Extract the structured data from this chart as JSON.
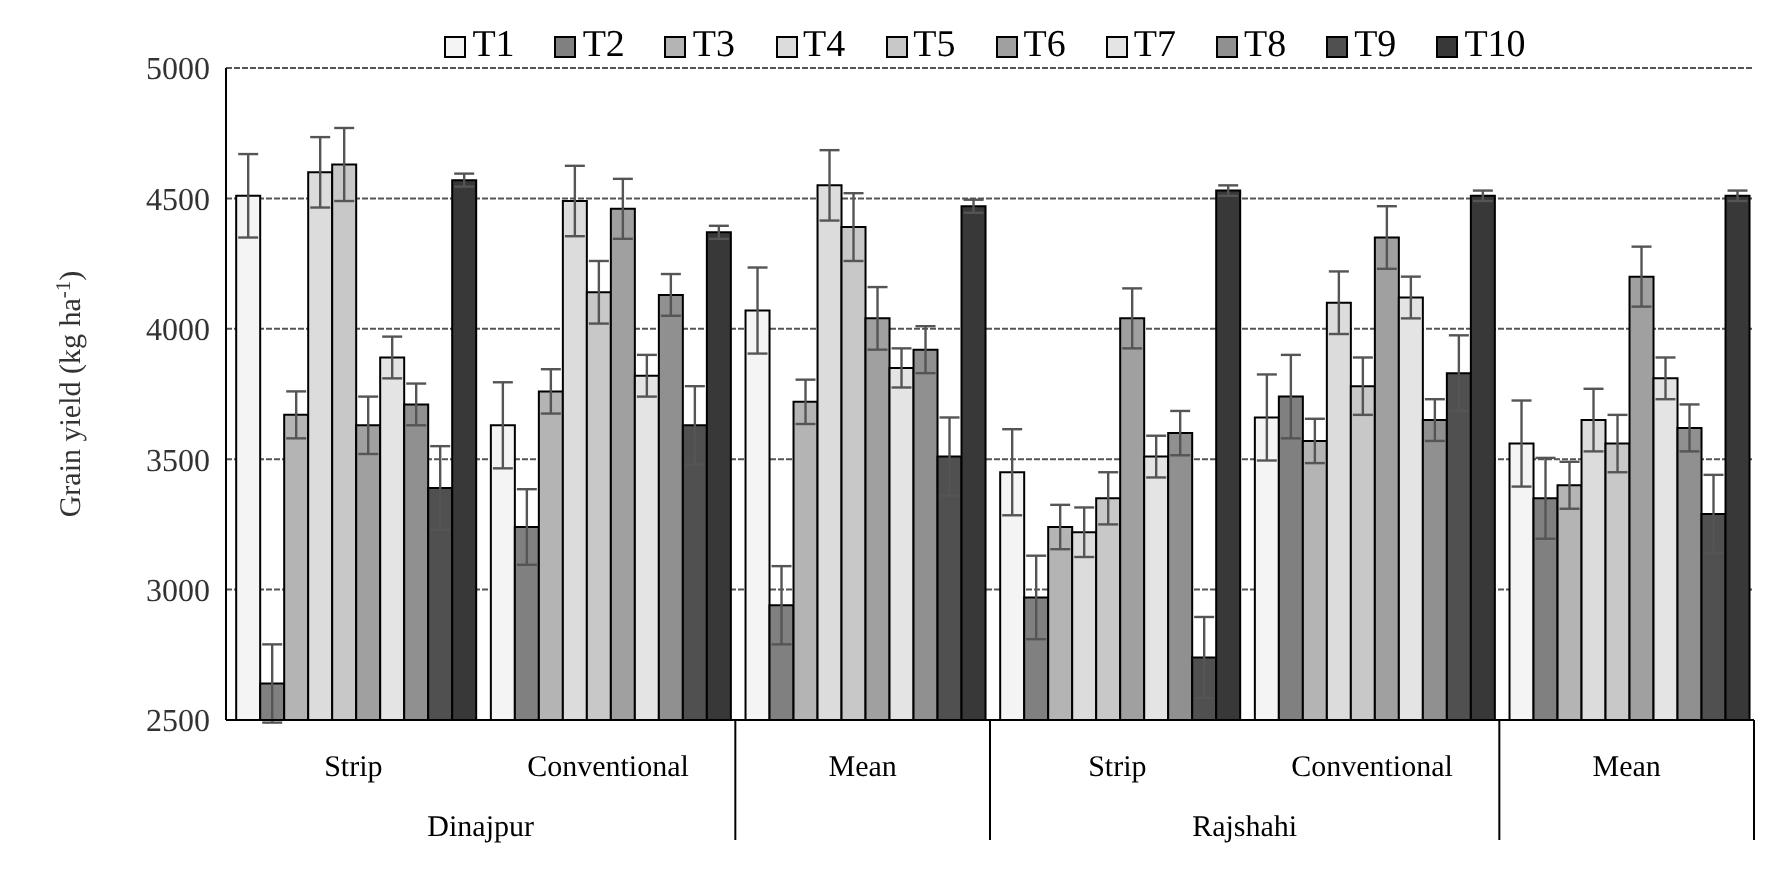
{
  "chart_data": {
    "type": "bar",
    "ylabel": "Grain yield (kg ha$^{-1}$)",
    "categories": [
      "Strip",
      "Conventional",
      "Mean",
      "Strip",
      "Conventional",
      "Mean"
    ],
    "annotations": [
      "Dinajpur",
      "Rajshahi"
    ],
    "series": [
      {
        "name": "T1",
        "color": "#f4f4f4",
        "values": [
          4510,
          3630,
          4070,
          3450,
          3660,
          3560
        ],
        "errors": [
          160,
          165,
          165,
          165,
          165,
          165
        ]
      },
      {
        "name": "T2",
        "color": "#808080",
        "values": [
          2640,
          3240,
          2940,
          2970,
          3740,
          3350
        ],
        "errors": [
          150,
          145,
          150,
          160,
          160,
          155
        ]
      },
      {
        "name": "T3",
        "color": "#b4b4b4",
        "values": [
          3670,
          3760,
          3720,
          3240,
          3570,
          3400
        ],
        "errors": [
          90,
          85,
          85,
          85,
          85,
          90
        ]
      },
      {
        "name": "T4",
        "color": "#dcdcdc",
        "values": [
          4600,
          4490,
          4550,
          3220,
          4100,
          3650
        ],
        "errors": [
          135,
          135,
          135,
          95,
          120,
          120
        ]
      },
      {
        "name": "T5",
        "color": "#c8c8c8",
        "values": [
          4630,
          4140,
          4390,
          3350,
          3780,
          3560
        ],
        "errors": [
          140,
          120,
          130,
          100,
          110,
          110
        ]
      },
      {
        "name": "T6",
        "color": "#a0a0a0",
        "values": [
          3630,
          4460,
          4040,
          4040,
          4350,
          4200
        ],
        "errors": [
          110,
          115,
          120,
          115,
          120,
          115
        ]
      },
      {
        "name": "T7",
        "color": "#e4e4e4",
        "values": [
          3890,
          3820,
          3850,
          3510,
          4120,
          3810
        ],
        "errors": [
          80,
          80,
          75,
          80,
          80,
          80
        ]
      },
      {
        "name": "T8",
        "color": "#909090",
        "values": [
          3710,
          4130,
          3920,
          3600,
          3650,
          3620
        ],
        "errors": [
          80,
          80,
          90,
          85,
          80,
          90
        ]
      },
      {
        "name": "T9",
        "color": "#505050",
        "values": [
          3390,
          3630,
          3510,
          2740,
          3830,
          3290
        ],
        "errors": [
          160,
          150,
          150,
          155,
          145,
          150
        ]
      },
      {
        "name": "T10",
        "color": "#383838",
        "values": [
          4570,
          4370,
          4470,
          4530,
          4510,
          4510
        ],
        "errors": [
          25,
          25,
          25,
          20,
          20,
          20
        ]
      }
    ],
    "ylim": [
      2500,
      5000
    ],
    "yticks": [
      2500,
      3000,
      3500,
      4000,
      4500,
      5000
    ],
    "grid": "y",
    "legend": "top"
  }
}
